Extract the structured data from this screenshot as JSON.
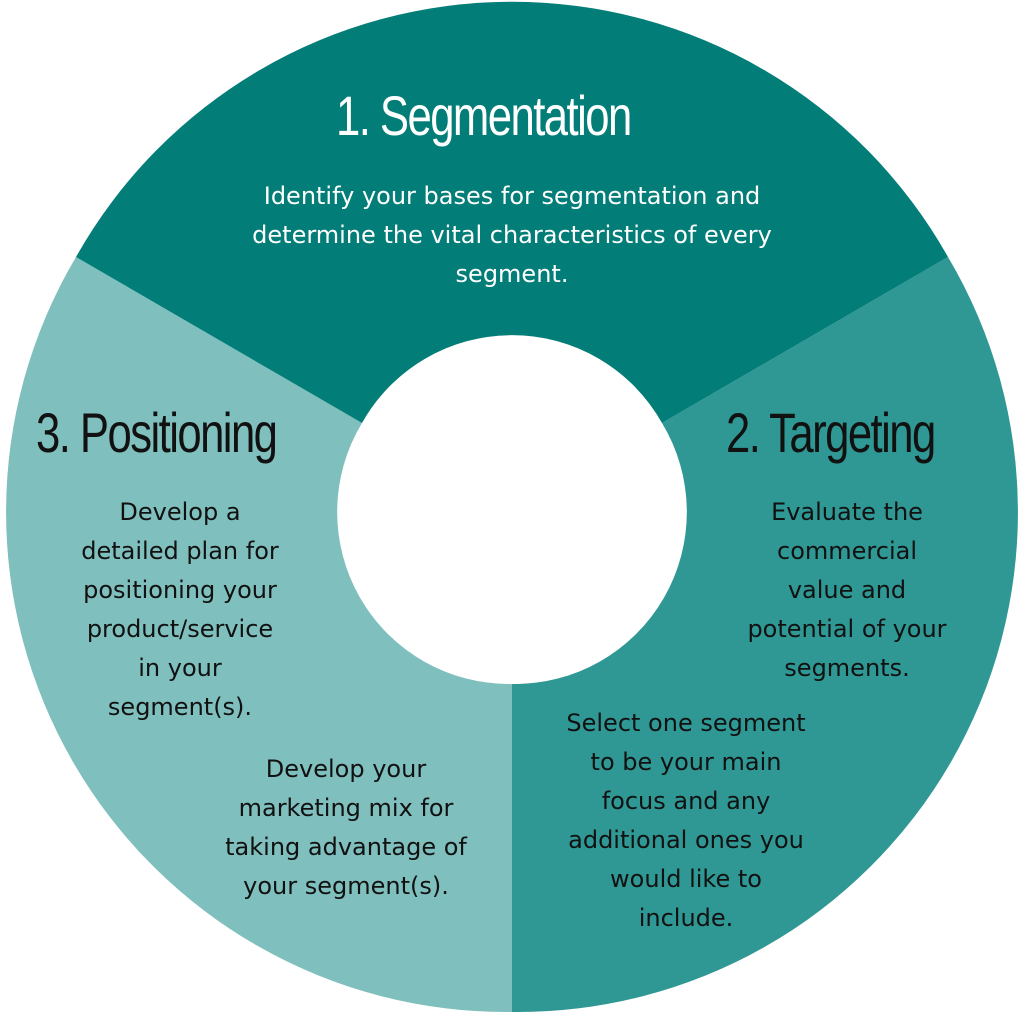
{
  "colors": {
    "segmentation": "#037d78",
    "targeting": "#2f9894",
    "positioning": "#7fbfbd",
    "center": "#ffffff"
  },
  "segments": {
    "segmentation": {
      "title": "1. Segmentation",
      "description": [
        "Identify your bases for segmentation and",
        "determine the vital characteristics of every",
        "segment."
      ]
    },
    "targeting": {
      "title": "2. Targeting",
      "description_1": [
        "Evaluate the",
        "commercial",
        "value and",
        "potential of your",
        "segments."
      ],
      "description_2": [
        "Select one segment",
        "to be your main",
        "focus and any",
        "additional ones you",
        "would like to",
        "include."
      ]
    },
    "positioning": {
      "title": "3. Positioning",
      "description_1": [
        "Develop a",
        "detailed plan for",
        "positioning your",
        "product/service",
        "in your",
        "segment(s)."
      ],
      "description_2": [
        "Develop your",
        "marketing mix for",
        "taking advantage of",
        "your segment(s)."
      ]
    }
  }
}
